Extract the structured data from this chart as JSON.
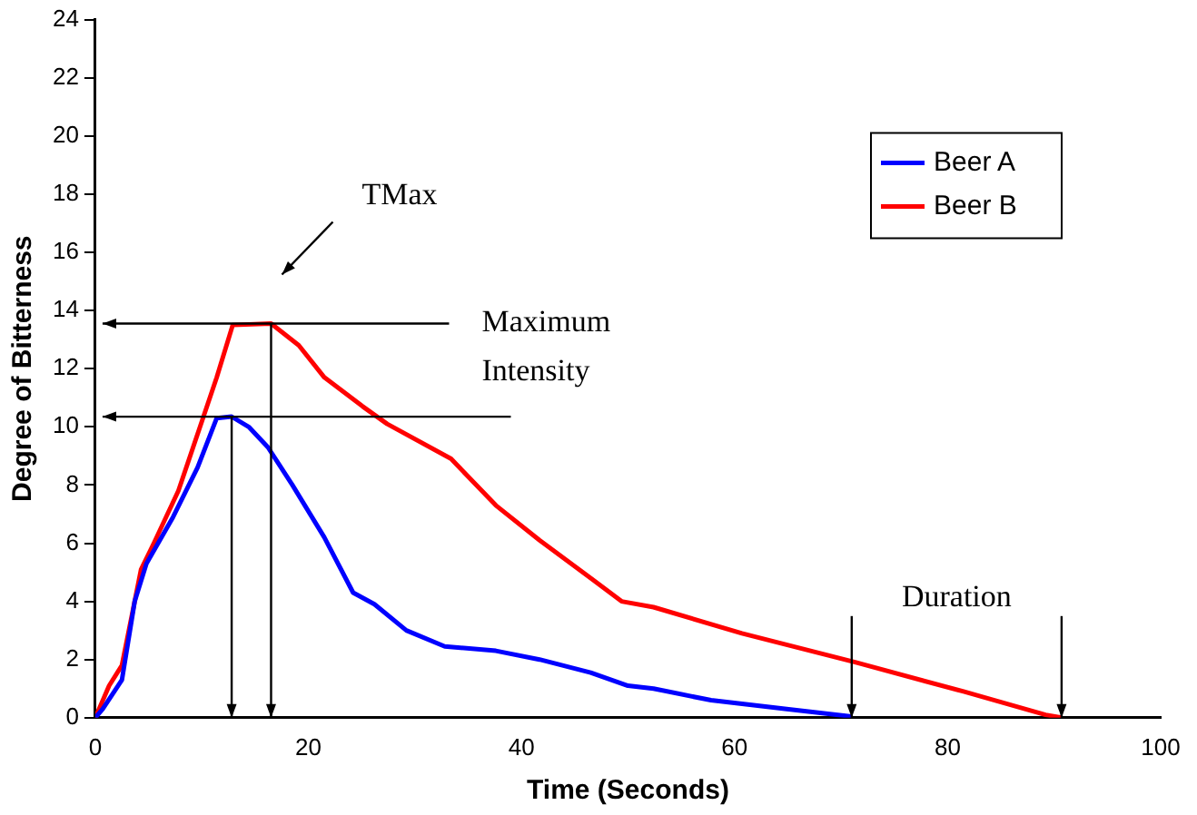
{
  "chart_data": {
    "type": "line",
    "xlabel": "Time (Seconds)",
    "ylabel": "Degree of Bitterness",
    "xlim": [
      0,
      100
    ],
    "xticks": [
      0,
      20,
      40,
      60,
      80,
      100
    ],
    "ylim": [
      0,
      24
    ],
    "yticks": [
      0,
      2,
      4,
      6,
      8,
      10,
      12,
      14,
      16,
      18,
      20,
      22,
      24
    ],
    "grid": false,
    "legend": "top right",
    "marker": "none",
    "line_style": "solid",
    "series": [
      {
        "name": "Beer A",
        "color": "#0000ff",
        "x": [
          0,
          0.7,
          2.5,
          3.7,
          4.8,
          7.3,
          9.6,
          11.4,
          12.8,
          14.4,
          16.2,
          18.5,
          21.5,
          24.2,
          26.2,
          29.2,
          32.8,
          37.6,
          41.7,
          46.5,
          50,
          52.4,
          57.8,
          64.9,
          70.8,
          71
        ],
        "values": [
          0,
          0.3,
          1.3,
          4.0,
          5.3,
          6.9,
          8.6,
          10.3,
          10.35,
          10.0,
          9.3,
          8.0,
          6.2,
          4.3,
          3.9,
          3.0,
          2.45,
          2.3,
          2.0,
          1.55,
          1.1,
          1.0,
          0.6,
          0.3,
          0.05,
          0
        ]
      },
      {
        "name": "Beer B",
        "color": "#ff0000",
        "x": [
          0,
          1.3,
          2.5,
          4.3,
          5.5,
          7.8,
          10.2,
          11.4,
          12.9,
          16.5,
          19.1,
          21.5,
          25.1,
          27.4,
          33.4,
          37.6,
          41.7,
          46.5,
          49.4,
          52.4,
          60.7,
          71.4,
          81.5,
          89.2,
          90.7
        ],
        "values": [
          0,
          1.1,
          1.8,
          5.1,
          6.0,
          7.8,
          10.4,
          11.7,
          13.5,
          13.55,
          12.8,
          11.7,
          10.7,
          10.1,
          8.9,
          7.3,
          6.1,
          4.8,
          4.0,
          3.8,
          2.9,
          1.9,
          0.9,
          0.1,
          0
        ]
      }
    ],
    "annotations": [
      "TMax",
      "Maximum Intensity",
      "Duration"
    ]
  }
}
